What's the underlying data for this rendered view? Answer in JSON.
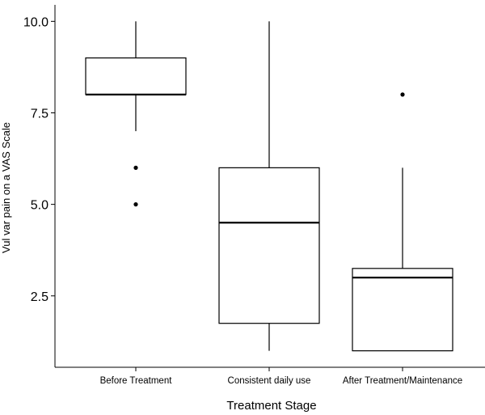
{
  "chart_data": {
    "type": "boxplot",
    "title": "",
    "xlabel": "Treatment Stage",
    "ylabel": "Vul var pain on a VAS Scale",
    "ylim": [
      0.55,
      10.45
    ],
    "yticks": [
      2.5,
      5.0,
      7.5,
      10.0
    ],
    "ytick_labels": [
      "2.5",
      "5.0",
      "7.5",
      "10.0"
    ],
    "grid": false,
    "categories": [
      "Before Treatment",
      "Consistent daily use",
      "After Treatment/Maintenance"
    ],
    "boxes": [
      {
        "category": "Before Treatment",
        "whisker_low": 7,
        "q1": 8,
        "median": 8,
        "q3": 9,
        "whisker_high": 10,
        "outliers": [
          5,
          6
        ]
      },
      {
        "category": "Consistent daily use",
        "whisker_low": 1,
        "q1": 1.75,
        "median": 4.5,
        "q3": 6,
        "whisker_high": 10,
        "outliers": []
      },
      {
        "category": "After Treatment/Maintenance",
        "whisker_low": 1,
        "q1": 1,
        "median": 3,
        "q3": 3.25,
        "whisker_high": 6,
        "outliers": [
          8
        ]
      }
    ]
  }
}
